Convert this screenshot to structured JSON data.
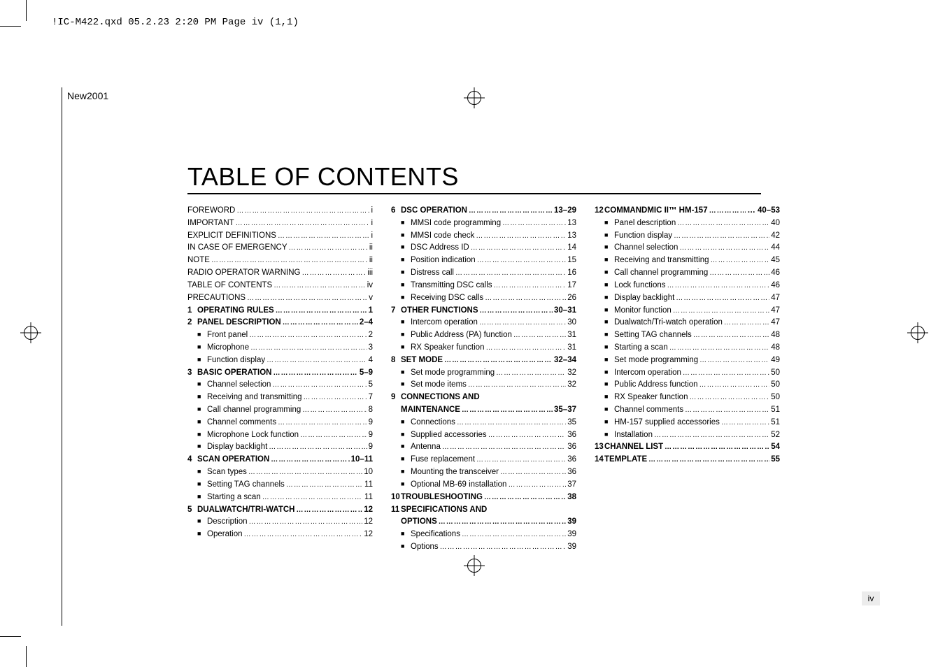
{
  "header_line": "!IC-M422.qxd  05.2.23 2:20 PM  Page iv (1,1)",
  "new_label": "New2001",
  "title": "TABLE OF CONTENTS",
  "page_iv": "iv",
  "col1": [
    {
      "type": "plain",
      "label": "FOREWORD",
      "page": "i"
    },
    {
      "type": "plain",
      "label": "IMPORTANT",
      "page": "i"
    },
    {
      "type": "plain",
      "label": "EXPLICIT DEFINITIONS",
      "page": "i"
    },
    {
      "type": "plain",
      "label": "IN CASE OF EMERGENCY",
      "page": "ii"
    },
    {
      "type": "plain",
      "label": "NOTE",
      "page": "ii"
    },
    {
      "type": "plain",
      "label": "RADIO OPERATOR WARNING",
      "page": "iii"
    },
    {
      "type": "plain",
      "label": "TABLE OF CONTENTS",
      "page": "iv"
    },
    {
      "type": "plain",
      "label": "PRECAUTIONS",
      "page": "v"
    },
    {
      "type": "chapter",
      "num": "1",
      "label": "OPERATING RULES",
      "page": "1"
    },
    {
      "type": "chapter",
      "num": "2",
      "label": "PANEL DESCRIPTION",
      "page": "2–4"
    },
    {
      "type": "sub",
      "label": "Front panel",
      "page": "2"
    },
    {
      "type": "sub",
      "label": "Microphone",
      "page": "3"
    },
    {
      "type": "sub",
      "label": "Function display",
      "page": "4"
    },
    {
      "type": "chapter",
      "num": "3",
      "label": "BASIC OPERATION",
      "page": "5–9"
    },
    {
      "type": "sub",
      "label": "Channel selection",
      "page": "5"
    },
    {
      "type": "sub",
      "label": "Receiving and transmitting",
      "page": "7"
    },
    {
      "type": "sub",
      "label": "Call channel programming",
      "page": "8"
    },
    {
      "type": "sub",
      "label": "Channel comments",
      "page": "9"
    },
    {
      "type": "sub",
      "label": "Microphone Lock function",
      "page": "9"
    },
    {
      "type": "sub",
      "label": "Display backlight",
      "page": "9"
    },
    {
      "type": "chapter",
      "num": "4",
      "label": "SCAN OPERATION",
      "page": "10–11"
    },
    {
      "type": "sub",
      "label": "Scan types",
      "page": "10"
    },
    {
      "type": "sub",
      "label": "Setting TAG channels",
      "page": "11"
    },
    {
      "type": "sub",
      "label": "Starting a scan",
      "page": "11"
    },
    {
      "type": "chapter",
      "num": "5",
      "label": "DUALWATCH/TRI-WATCH",
      "page": "12"
    },
    {
      "type": "sub",
      "label": "Description",
      "page": "12"
    },
    {
      "type": "sub",
      "label": "Operation",
      "page": "12"
    }
  ],
  "col2": [
    {
      "type": "chapter",
      "num": "6",
      "label": "DSC OPERATION",
      "page": "13–29"
    },
    {
      "type": "sub",
      "label": "MMSI code programming",
      "page": "13"
    },
    {
      "type": "sub",
      "label": "MMSI code check",
      "page": "13"
    },
    {
      "type": "sub",
      "label": "DSC Address ID",
      "page": "14"
    },
    {
      "type": "sub",
      "label": "Position indication",
      "page": "15"
    },
    {
      "type": "sub",
      "label": "Distress call",
      "page": "16"
    },
    {
      "type": "sub",
      "label": "Transmitting DSC calls",
      "page": "17"
    },
    {
      "type": "sub",
      "label": "Receiving DSC calls",
      "page": "26"
    },
    {
      "type": "chapter",
      "num": "7",
      "label": "OTHER FUNCTIONS",
      "page": "30–31"
    },
    {
      "type": "sub",
      "label": "Intercom operation",
      "page": "30"
    },
    {
      "type": "sub",
      "label": "Public Address (PA) function",
      "page": "31"
    },
    {
      "type": "sub",
      "label": "RX Speaker function",
      "page": "31"
    },
    {
      "type": "chapter",
      "num": "8",
      "label": "SET MODE",
      "page": "32–34"
    },
    {
      "type": "sub",
      "label": "Set mode programming",
      "page": "32"
    },
    {
      "type": "sub",
      "label": "Set mode items",
      "page": "32"
    },
    {
      "type": "chapter",
      "num": "9",
      "label": "CONNECTIONS AND",
      "page": ""
    },
    {
      "type": "chapter_cont",
      "label": "MAINTENANCE",
      "page": "35–37"
    },
    {
      "type": "sub",
      "label": "Connections",
      "page": "35"
    },
    {
      "type": "sub",
      "label": "Supplied accessories",
      "page": "36"
    },
    {
      "type": "sub",
      "label": "Antenna",
      "page": "36"
    },
    {
      "type": "sub",
      "label": "Fuse replacement",
      "page": "36"
    },
    {
      "type": "sub",
      "label": "Mounting the transceiver",
      "page": "36"
    },
    {
      "type": "sub",
      "label": "Optional MB-69 installation",
      "page": "37"
    },
    {
      "type": "chapter",
      "num": "10",
      "label": "TROUBLESHOOTING",
      "page": "38"
    },
    {
      "type": "chapter",
      "num": "11",
      "label": "SPECIFICATIONS AND",
      "page": ""
    },
    {
      "type": "chapter_cont",
      "label": "OPTIONS",
      "page": "39"
    },
    {
      "type": "sub",
      "label": "Specifications",
      "page": "39"
    },
    {
      "type": "sub",
      "label": "Options",
      "page": "39"
    }
  ],
  "col3": [
    {
      "type": "chapter",
      "num": "12",
      "label": "COMMANDMIC II™ HM-157",
      "page": "… 40–53"
    },
    {
      "type": "sub",
      "label": "Panel description",
      "page": "40"
    },
    {
      "type": "sub",
      "label": "Function display",
      "page": "42"
    },
    {
      "type": "sub",
      "label": "Channel selection",
      "page": "44"
    },
    {
      "type": "sub",
      "label": "Receiving and transmitting",
      "page": "45"
    },
    {
      "type": "sub",
      "label": "Call channel programming",
      "page": "46"
    },
    {
      "type": "sub",
      "label": "Lock functions",
      "page": "46"
    },
    {
      "type": "sub",
      "label": "Display backlight",
      "page": "47"
    },
    {
      "type": "sub",
      "label": "Monitor function",
      "page": "47"
    },
    {
      "type": "sub",
      "label": "Dualwatch/Tri-watch operation",
      "page": "47"
    },
    {
      "type": "sub",
      "label": "Setting TAG channels",
      "page": "48"
    },
    {
      "type": "sub",
      "label": "Starting a scan",
      "page": "48"
    },
    {
      "type": "sub",
      "label": "Set mode programming",
      "page": "49"
    },
    {
      "type": "sub",
      "label": "Intercom operation",
      "page": "50"
    },
    {
      "type": "sub",
      "label": "Public Address function",
      "page": "50"
    },
    {
      "type": "sub",
      "label": "RX Speaker function",
      "page": "50"
    },
    {
      "type": "sub",
      "label": "Channel comments",
      "page": "51"
    },
    {
      "type": "sub",
      "label": "HM-157 supplied accessories",
      "page": "51"
    },
    {
      "type": "sub",
      "label": "Installation",
      "page": "52"
    },
    {
      "type": "chapter",
      "num": "13",
      "label": "CHANNEL LIST",
      "page": "54"
    },
    {
      "type": "chapter",
      "num": "14",
      "label": "TEMPLATE",
      "page": "55"
    }
  ]
}
